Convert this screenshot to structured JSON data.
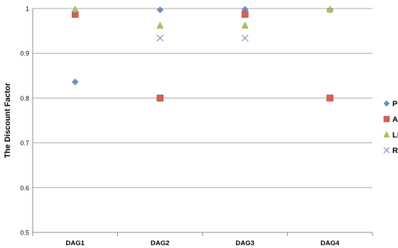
{
  "chart_data": {
    "type": "scatter",
    "title": "",
    "ylabel": "The Discount Factor",
    "xlabel": "",
    "categories": [
      "DAG1",
      "DAG2",
      "DAG3",
      "DAG4"
    ],
    "ylim": [
      0.5,
      1.0
    ],
    "yticks": [
      0.5,
      0.6,
      0.7,
      0.8,
      0.9,
      1.0
    ],
    "ytick_labels": [
      "0.5",
      "0.6",
      "0.7",
      "0.8",
      "0.9",
      "1"
    ],
    "grid": true,
    "legend_position": "right",
    "series": [
      {
        "name": "PC",
        "marker": "diamond",
        "color": "#6f8fc8",
        "values": [
          0.836,
          0.997,
          0.998,
          0.997
        ]
      },
      {
        "name": "AI",
        "marker": "square",
        "color": "#d6605c",
        "values": [
          0.987,
          0.8,
          0.987,
          0.8
        ]
      },
      {
        "name": "LP",
        "marker": "triangle",
        "color": "#a8c45e",
        "values": [
          0.998,
          0.962,
          0.962,
          0.998
        ]
      },
      {
        "name": "RI",
        "marker": "x",
        "color": "#9b8fc4",
        "values": [
          null,
          0.934,
          0.934,
          null
        ]
      }
    ]
  }
}
